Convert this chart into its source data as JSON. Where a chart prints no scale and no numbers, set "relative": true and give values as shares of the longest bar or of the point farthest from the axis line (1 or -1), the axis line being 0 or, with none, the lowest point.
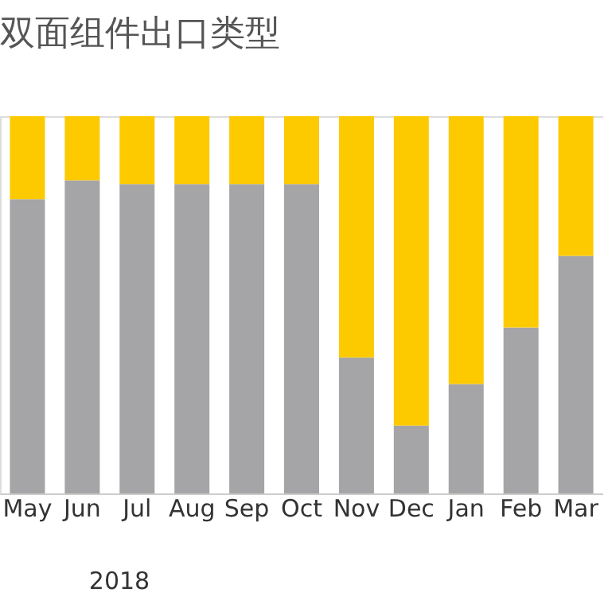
{
  "chart_data": {
    "type": "bar",
    "title": "双面组件出口类型",
    "relative": true,
    "stacked": true,
    "categories": [
      "May",
      "Jun",
      "Jul",
      "Aug",
      "Sep",
      "Oct",
      "Nov",
      "Dec",
      "Jan",
      "Feb",
      "Mar"
    ],
    "series": [
      {
        "color": "#a5a5a7",
        "values": [
          0.78,
          0.83,
          0.82,
          0.82,
          0.82,
          0.82,
          0.36,
          0.18,
          0.29,
          0.44,
          0.63
        ]
      },
      {
        "color": "#fdca00",
        "values": [
          0.22,
          0.17,
          0.18,
          0.18,
          0.18,
          0.18,
          0.64,
          0.82,
          0.71,
          0.56,
          0.37
        ]
      }
    ],
    "annotations": [
      "2018"
    ]
  }
}
